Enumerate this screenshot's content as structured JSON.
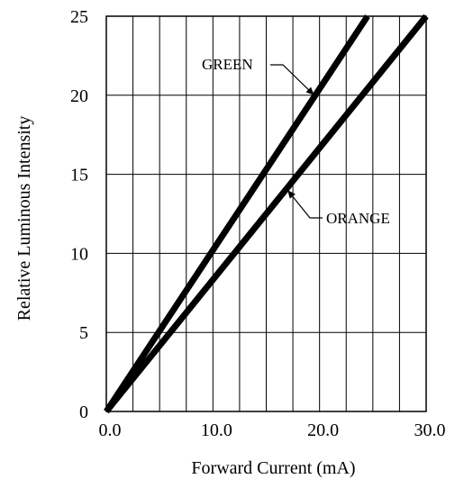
{
  "chart_data": {
    "type": "line",
    "title": "",
    "xlabel": "Forward Current (mA)",
    "ylabel": "Relative Luminous Intensity",
    "xlim": [
      0,
      30
    ],
    "ylim": [
      0,
      25
    ],
    "x_ticks": [
      0,
      10,
      20,
      30
    ],
    "x_tick_labels": [
      "0.0",
      "10.0",
      "20.0",
      "30.0"
    ],
    "y_ticks": [
      0,
      5,
      10,
      15,
      20,
      25
    ],
    "y_tick_labels": [
      "0",
      "5",
      "10",
      "15",
      "20",
      "25"
    ],
    "x_grid_step": 2.5,
    "y_grid_step": 5,
    "grid": true,
    "legend": "none (series labeled inline with leader lines)",
    "series": [
      {
        "name": "GREEN",
        "x": [
          0,
          24.5
        ],
        "y": [
          0,
          25
        ]
      },
      {
        "name": "ORANGE",
        "x": [
          0,
          30
        ],
        "y": [
          0,
          25
        ]
      }
    ],
    "annotations": [
      {
        "text": "GREEN",
        "points_to_series": "GREEN",
        "at_x": 19.5,
        "at_y": 20
      },
      {
        "text": "ORANGE",
        "points_to_series": "ORANGE",
        "at_x": 17,
        "at_y": 14
      }
    ],
    "colors": {
      "line": "#000000",
      "grid": "#000000",
      "background": "#ffffff"
    }
  }
}
